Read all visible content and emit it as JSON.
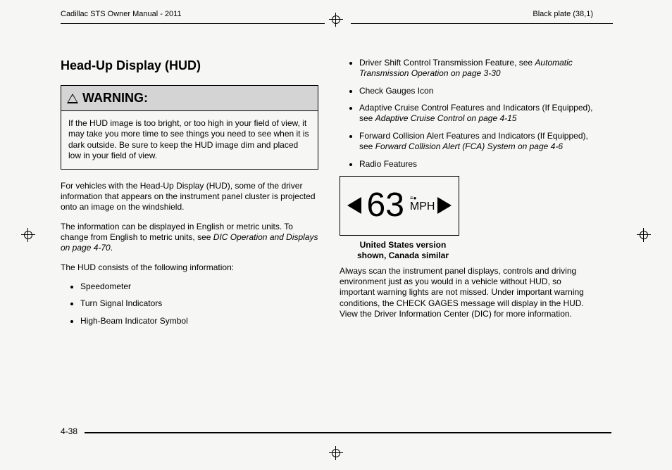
{
  "header": {
    "left": "Cadillac STS Owner Manual - 2011",
    "right": "Black plate (38,1)"
  },
  "heading": "Head-Up Display (HUD)",
  "warning": {
    "title": "WARNING:",
    "body": "If the HUD image is too bright, or too high in your field of view, it may take you more time to see things you need to see when it is dark outside. Be sure to keep the HUD image dim and placed low in your field of view."
  },
  "left_paras": {
    "p1": "For vehicles with the Head-Up Display (HUD), some of the driver information that appears on the instrument panel cluster is projected onto an image on the windshield.",
    "p2a": "The information can be displayed in English or metric units. To change from English to metric units, see ",
    "p2i": "DIC Operation and Displays on page 4-70",
    "p2b": ".",
    "p3": "The HUD consists of the following information:"
  },
  "left_bullets": {
    "b1": "Speedometer",
    "b2": "Turn Signal Indicators",
    "b3": "High-Beam Indicator Symbol"
  },
  "right_bullets": {
    "r1a": "Driver Shift Control Transmission Feature, see ",
    "r1i": "Automatic Transmission Operation on page 3-30",
    "r2": "Check Gauges Icon",
    "r3a": "Adaptive Cruise Control Features and Indicators (If Equipped), see ",
    "r3i": "Adaptive Cruise Control on page 4-15",
    "r4a": "Forward Collision Alert Features and Indicators (If Equipped), see ",
    "r4i": "Forward Collision Alert (FCA) System on page 4-6",
    "r5": "Radio Features"
  },
  "hud": {
    "speed": "63",
    "unit": "MPH",
    "caption_l1": "United States version",
    "caption_l2": "shown, Canada similar"
  },
  "right_para": "Always scan the instrument panel displays, controls and driving environment just as you would in a vehicle without HUD, so important warning lights are not missed. Under important warning conditions, the CHECK GAGES message will display in the HUD. View the Driver Information Center (DIC) for more information.",
  "page_number": "4-38"
}
